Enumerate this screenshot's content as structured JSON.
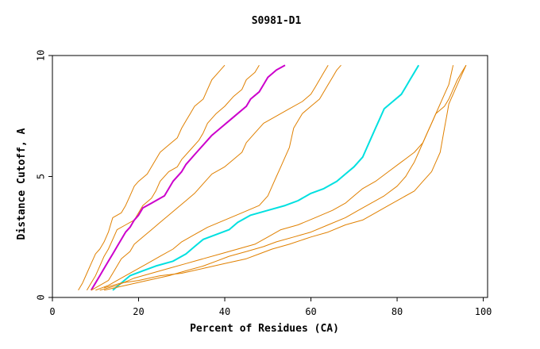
{
  "chart_data": {
    "type": "line",
    "title": "S0981-D1",
    "xlabel": "Percent of Residues (CA)",
    "ylabel": "Distance Cutoff, A",
    "xlim": [
      0,
      101
    ],
    "ylim": [
      0,
      10
    ],
    "x_ticks": [
      0,
      20,
      40,
      60,
      80,
      100
    ],
    "x_tick_labels": [
      "0",
      "20",
      "40",
      "60",
      "80",
      "100"
    ],
    "y_ticks": [
      0,
      5,
      10
    ],
    "y_tick_labels": [
      "0",
      "5",
      "10"
    ],
    "grid": false,
    "legend": "none",
    "series": [
      {
        "color": "#e08000",
        "points": [
          [
            6,
            0.3
          ],
          [
            7,
            0.6
          ],
          [
            8,
            1.0
          ],
          [
            9,
            1.4
          ],
          [
            10,
            1.8
          ],
          [
            11,
            2.0
          ],
          [
            12,
            2.3
          ],
          [
            13,
            2.7
          ],
          [
            13.5,
            3.0
          ],
          [
            14,
            3.3
          ],
          [
            16,
            3.5
          ],
          [
            17,
            3.8
          ],
          [
            18,
            4.2
          ],
          [
            19,
            4.6
          ],
          [
            20,
            4.8
          ],
          [
            22,
            5.1
          ],
          [
            23,
            5.4
          ],
          [
            24,
            5.7
          ],
          [
            25,
            6.0
          ],
          [
            27,
            6.3
          ],
          [
            29,
            6.6
          ],
          [
            30,
            7.0
          ],
          [
            31,
            7.3
          ],
          [
            32,
            7.6
          ],
          [
            33,
            7.9
          ],
          [
            35,
            8.2
          ],
          [
            36,
            8.6
          ],
          [
            37,
            9.0
          ],
          [
            38,
            9.2
          ],
          [
            39,
            9.4
          ],
          [
            40,
            9.6
          ]
        ]
      },
      {
        "color": "#e08000",
        "points": [
          [
            8,
            0.3
          ],
          [
            9,
            0.6
          ],
          [
            10,
            0.9
          ],
          [
            11,
            1.3
          ],
          [
            12,
            1.7
          ],
          [
            13,
            2.0
          ],
          [
            14,
            2.4
          ],
          [
            15,
            2.8
          ],
          [
            17,
            3.0
          ],
          [
            19,
            3.2
          ],
          [
            20,
            3.5
          ],
          [
            21,
            3.8
          ],
          [
            23,
            4.1
          ],
          [
            24,
            4.4
          ],
          [
            25,
            4.8
          ],
          [
            27,
            5.2
          ],
          [
            29,
            5.4
          ],
          [
            30,
            5.7
          ],
          [
            32,
            6.1
          ],
          [
            34,
            6.5
          ],
          [
            35,
            6.8
          ],
          [
            36,
            7.2
          ],
          [
            38,
            7.6
          ],
          [
            40,
            7.9
          ],
          [
            42,
            8.3
          ],
          [
            44,
            8.6
          ],
          [
            45,
            9.0
          ],
          [
            47,
            9.3
          ],
          [
            48,
            9.6
          ]
        ]
      },
      {
        "color": "#cc00cc",
        "points": [
          [
            9,
            0.3
          ],
          [
            10,
            0.6
          ],
          [
            11,
            0.9
          ],
          [
            12,
            1.2
          ],
          [
            13,
            1.5
          ],
          [
            14,
            1.8
          ],
          [
            15,
            2.1
          ],
          [
            16,
            2.4
          ],
          [
            17,
            2.7
          ],
          [
            18,
            2.9
          ],
          [
            19,
            3.2
          ],
          [
            20,
            3.4
          ],
          [
            21,
            3.7
          ],
          [
            23,
            3.9
          ],
          [
            26,
            4.2
          ],
          [
            27,
            4.5
          ],
          [
            28,
            4.8
          ],
          [
            30,
            5.2
          ],
          [
            31,
            5.5
          ],
          [
            33,
            5.9
          ],
          [
            35,
            6.3
          ],
          [
            37,
            6.7
          ],
          [
            39,
            7.0
          ],
          [
            41,
            7.3
          ],
          [
            43,
            7.6
          ],
          [
            45,
            7.9
          ],
          [
            46,
            8.2
          ],
          [
            48,
            8.5
          ],
          [
            49,
            8.8
          ],
          [
            50,
            9.1
          ],
          [
            52,
            9.4
          ],
          [
            54,
            9.6
          ]
        ]
      },
      {
        "color": "#e08000",
        "points": [
          [
            9,
            0.3
          ],
          [
            11,
            0.5
          ],
          [
            13,
            0.7
          ],
          [
            14,
            1.0
          ],
          [
            15,
            1.3
          ],
          [
            16,
            1.6
          ],
          [
            18,
            1.9
          ],
          [
            19,
            2.2
          ],
          [
            21,
            2.5
          ],
          [
            23,
            2.8
          ],
          [
            25,
            3.1
          ],
          [
            27,
            3.4
          ],
          [
            29,
            3.7
          ],
          [
            31,
            4.0
          ],
          [
            33,
            4.3
          ],
          [
            35,
            4.7
          ],
          [
            37,
            5.1
          ],
          [
            40,
            5.4
          ],
          [
            42,
            5.7
          ],
          [
            44,
            6.0
          ],
          [
            45,
            6.4
          ],
          [
            47,
            6.8
          ],
          [
            49,
            7.2
          ],
          [
            52,
            7.5
          ],
          [
            55,
            7.8
          ],
          [
            58,
            8.1
          ],
          [
            60,
            8.4
          ],
          [
            61,
            8.7
          ],
          [
            62,
            9.0
          ],
          [
            63,
            9.3
          ],
          [
            64,
            9.6
          ]
        ]
      },
      {
        "color": "#e08000",
        "points": [
          [
            10,
            0.3
          ],
          [
            13,
            0.5
          ],
          [
            16,
            0.8
          ],
          [
            19,
            1.1
          ],
          [
            22,
            1.4
          ],
          [
            25,
            1.7
          ],
          [
            28,
            2.0
          ],
          [
            30,
            2.3
          ],
          [
            33,
            2.6
          ],
          [
            36,
            2.9
          ],
          [
            40,
            3.2
          ],
          [
            44,
            3.5
          ],
          [
            48,
            3.8
          ],
          [
            50,
            4.2
          ],
          [
            51,
            4.6
          ],
          [
            52,
            5.0
          ],
          [
            53,
            5.4
          ],
          [
            54,
            5.8
          ],
          [
            55,
            6.2
          ],
          [
            55.5,
            6.6
          ],
          [
            56,
            7.0
          ],
          [
            57,
            7.3
          ],
          [
            58,
            7.6
          ],
          [
            60,
            7.9
          ],
          [
            62,
            8.2
          ],
          [
            63,
            8.5
          ],
          [
            64,
            8.8
          ],
          [
            65,
            9.1
          ],
          [
            66,
            9.4
          ],
          [
            67,
            9.6
          ]
        ]
      },
      {
        "color": "#00e0e0",
        "points": [
          [
            14,
            0.3
          ],
          [
            16,
            0.6
          ],
          [
            18,
            0.9
          ],
          [
            21,
            1.1
          ],
          [
            24,
            1.3
          ],
          [
            28,
            1.5
          ],
          [
            31,
            1.8
          ],
          [
            33,
            2.1
          ],
          [
            35,
            2.4
          ],
          [
            38,
            2.6
          ],
          [
            41,
            2.8
          ],
          [
            43,
            3.1
          ],
          [
            46,
            3.4
          ],
          [
            50,
            3.6
          ],
          [
            54,
            3.8
          ],
          [
            57,
            4.0
          ],
          [
            60,
            4.3
          ],
          [
            63,
            4.5
          ],
          [
            66,
            4.8
          ],
          [
            68,
            5.1
          ],
          [
            70,
            5.4
          ],
          [
            72,
            5.8
          ],
          [
            73,
            6.2
          ],
          [
            74,
            6.6
          ],
          [
            75,
            7.0
          ],
          [
            76,
            7.4
          ],
          [
            77,
            7.8
          ],
          [
            79,
            8.1
          ],
          [
            81,
            8.4
          ],
          [
            82,
            8.7
          ],
          [
            83,
            9.0
          ],
          [
            84,
            9.3
          ],
          [
            85,
            9.6
          ]
        ]
      },
      {
        "color": "#e08000",
        "points": [
          [
            11,
            0.3
          ],
          [
            15,
            0.5
          ],
          [
            19,
            0.8
          ],
          [
            23,
            1.0
          ],
          [
            27,
            1.2
          ],
          [
            31,
            1.4
          ],
          [
            35,
            1.6
          ],
          [
            39,
            1.8
          ],
          [
            43,
            2.0
          ],
          [
            47,
            2.2
          ],
          [
            50,
            2.5
          ],
          [
            53,
            2.8
          ],
          [
            57,
            3.0
          ],
          [
            61,
            3.3
          ],
          [
            65,
            3.6
          ],
          [
            68,
            3.9
          ],
          [
            70,
            4.2
          ],
          [
            72,
            4.5
          ],
          [
            75,
            4.8
          ],
          [
            78,
            5.2
          ],
          [
            81,
            5.6
          ],
          [
            84,
            6.0
          ],
          [
            86,
            6.4
          ],
          [
            87,
            6.8
          ],
          [
            88,
            7.2
          ],
          [
            89,
            7.6
          ],
          [
            91,
            7.9
          ],
          [
            92,
            8.2
          ],
          [
            93,
            8.6
          ],
          [
            94,
            9.0
          ],
          [
            95,
            9.3
          ],
          [
            96,
            9.6
          ]
        ]
      },
      {
        "color": "#e08000",
        "points": [
          [
            12,
            0.3
          ],
          [
            17,
            0.5
          ],
          [
            22,
            0.7
          ],
          [
            27,
            0.9
          ],
          [
            31,
            1.1
          ],
          [
            35,
            1.3
          ],
          [
            38,
            1.5
          ],
          [
            41,
            1.7
          ],
          [
            45,
            1.9
          ],
          [
            49,
            2.1
          ],
          [
            52,
            2.3
          ],
          [
            56,
            2.5
          ],
          [
            60,
            2.7
          ],
          [
            64,
            3.0
          ],
          [
            68,
            3.3
          ],
          [
            71,
            3.6
          ],
          [
            74,
            3.9
          ],
          [
            77,
            4.2
          ],
          [
            80,
            4.6
          ],
          [
            82,
            5.0
          ],
          [
            83,
            5.3
          ],
          [
            84,
            5.6
          ],
          [
            85,
            6.0
          ],
          [
            86,
            6.4
          ],
          [
            87,
            6.8
          ],
          [
            88,
            7.2
          ],
          [
            89,
            7.6
          ],
          [
            90,
            8.0
          ],
          [
            91,
            8.4
          ],
          [
            92,
            8.8
          ],
          [
            92.5,
            9.2
          ],
          [
            93,
            9.6
          ]
        ]
      },
      {
        "color": "#e08000",
        "points": [
          [
            12,
            0.4
          ],
          [
            16,
            0.6
          ],
          [
            20,
            0.7
          ],
          [
            25,
            0.9
          ],
          [
            30,
            1.0
          ],
          [
            35,
            1.2
          ],
          [
            40,
            1.4
          ],
          [
            45,
            1.6
          ],
          [
            48,
            1.8
          ],
          [
            51,
            2.0
          ],
          [
            55,
            2.2
          ],
          [
            60,
            2.5
          ],
          [
            64,
            2.7
          ],
          [
            68,
            3.0
          ],
          [
            72,
            3.2
          ],
          [
            75,
            3.5
          ],
          [
            78,
            3.8
          ],
          [
            81,
            4.1
          ],
          [
            84,
            4.4
          ],
          [
            86,
            4.8
          ],
          [
            88,
            5.2
          ],
          [
            89,
            5.6
          ],
          [
            90,
            6.0
          ],
          [
            90.5,
            6.5
          ],
          [
            91,
            7.0
          ],
          [
            91.5,
            7.5
          ],
          [
            92,
            8.0
          ],
          [
            93,
            8.4
          ],
          [
            94,
            8.8
          ],
          [
            95,
            9.2
          ],
          [
            96,
            9.6
          ]
        ]
      }
    ]
  }
}
